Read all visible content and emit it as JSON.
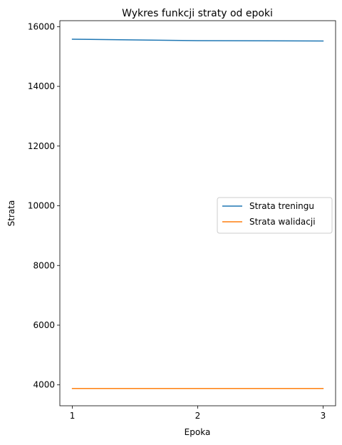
{
  "chart_data": {
    "type": "line",
    "title": "Wykres funkcji straty od epoki",
    "xlabel": "Epoka",
    "ylabel": "Strata",
    "x": [
      1,
      2,
      3
    ],
    "x_ticks": [
      "1",
      "2",
      "3"
    ],
    "xlim": [
      0.9,
      3.1
    ],
    "ylim": [
      3300,
      16200
    ],
    "y_ticks": [
      4000,
      6000,
      8000,
      10000,
      12000,
      14000,
      16000
    ],
    "grid": false,
    "legend_position": "center-right",
    "series": [
      {
        "name": "Strata treningu",
        "color": "#1f77b4",
        "values": [
          15580,
          15530,
          15520
        ]
      },
      {
        "name": "Strata walidacji",
        "color": "#ff7f0e",
        "values": [
          3880,
          3880,
          3880
        ]
      }
    ]
  }
}
